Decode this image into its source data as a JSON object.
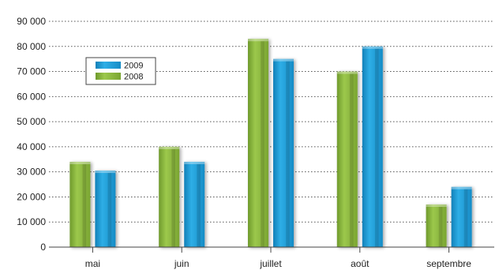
{
  "chart_data": {
    "type": "bar",
    "categories": [
      "mai",
      "juin",
      "juillet",
      "août",
      "septembre"
    ],
    "series": [
      {
        "name": "2008",
        "color": "#8ab63f",
        "values": [
          34000,
          40000,
          83000,
          70000,
          17000
        ]
      },
      {
        "name": "2009",
        "color": "#1a9ad8",
        "values": [
          30500,
          34000,
          75000,
          80000,
          24000
        ]
      }
    ],
    "y_ticks": [
      "0",
      "10 000",
      "20 000",
      "30 000",
      "40 000",
      "50 000",
      "60 000",
      "70 000",
      "80 000",
      "90 000"
    ],
    "ylim": [
      0,
      90000
    ],
    "grid": true,
    "grid_style": "dotted",
    "legend_position": "top-left",
    "legend_order": [
      "2009",
      "2008"
    ]
  }
}
